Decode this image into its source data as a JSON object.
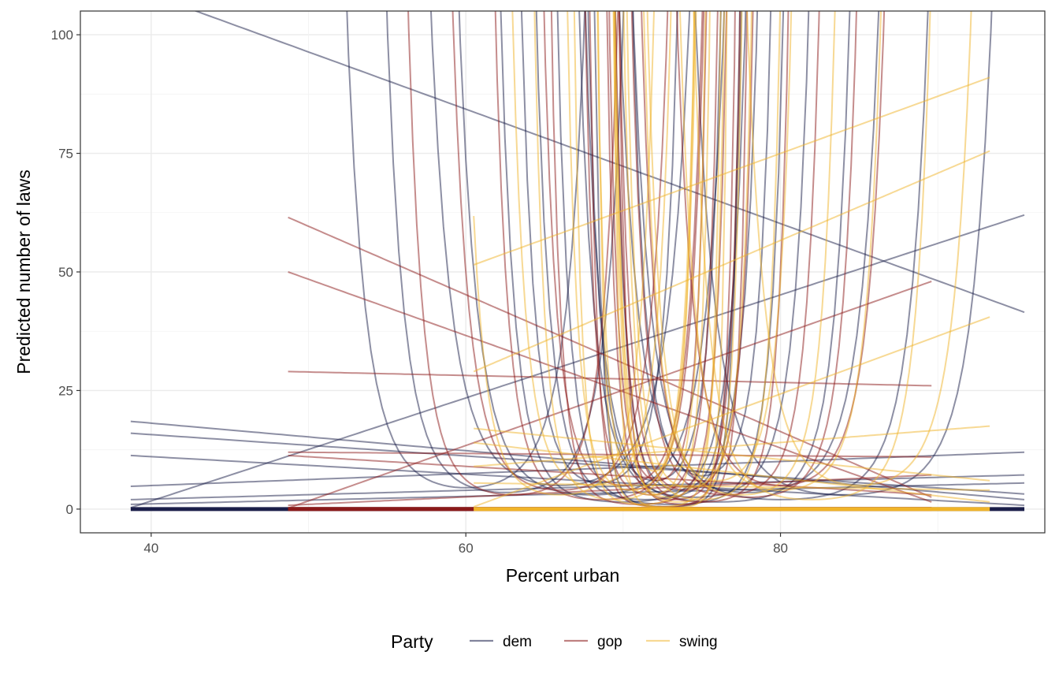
{
  "chart_data": {
    "type": "line",
    "title": "",
    "xlabel": "Percent urban",
    "ylabel": "Predicted number of laws",
    "xlim": [
      35.5,
      96.8
    ],
    "ylim": [
      -5,
      105
    ],
    "x_ticks": [
      40,
      60,
      80
    ],
    "y_ticks": [
      0,
      25,
      50,
      75,
      100
    ],
    "grid": true,
    "legend": {
      "title": "Party",
      "position": "bottom",
      "entries": [
        {
          "label": "dem",
          "color": "#1b1f4a"
        },
        {
          "label": "gop",
          "color": "#8b1a1a"
        },
        {
          "label": "swing",
          "color": "#f0b429"
        }
      ]
    },
    "series_groups": [
      {
        "name": "dem",
        "color": "#1b1f4a",
        "x_range": [
          38.7,
          95.5
        ],
        "curves": [
          {
            "form": "line",
            "y0": 18.5,
            "y1": 2.0
          },
          {
            "form": "line",
            "y0": 16.0,
            "y1": 3.2
          },
          {
            "form": "line",
            "y0": 4.8,
            "y1": 12.0
          },
          {
            "form": "line",
            "y0": 2.0,
            "y1": 7.2
          },
          {
            "form": "line",
            "y0": 1.0,
            "y1": 5.5
          },
          {
            "form": "line",
            "y0": 11.3,
            "y1": 0.8
          },
          {
            "form": "line",
            "y0": 110,
            "y1": 41.5
          },
          {
            "form": "line",
            "y0": 0.3,
            "y1": 62.0
          },
          {
            "form": "line",
            "y0": 0.2,
            "y1": 0.2
          },
          {
            "form": "u",
            "center": 60.0,
            "min": 4.5,
            "k": 0.055
          },
          {
            "form": "u",
            "center": 62.5,
            "min": 3.5,
            "k": 0.06
          },
          {
            "form": "u",
            "center": 66.0,
            "min": 5.0,
            "k": 0.045
          },
          {
            "form": "u",
            "center": 68.0,
            "min": 3.0,
            "k": 0.05
          },
          {
            "form": "u",
            "center": 70.0,
            "min": 1.5,
            "k": 0.07
          },
          {
            "form": "u",
            "center": 71.5,
            "min": 2.0,
            "k": 0.08
          },
          {
            "form": "u",
            "center": 73.0,
            "min": 1.0,
            "k": 0.09
          },
          {
            "form": "u",
            "center": 74.5,
            "min": 2.5,
            "k": 0.07
          },
          {
            "form": "u",
            "center": 76.0,
            "min": 1.5,
            "k": 0.06
          },
          {
            "form": "u",
            "center": 78.0,
            "min": 3.5,
            "k": 0.05
          },
          {
            "form": "u",
            "center": 80.0,
            "min": 2.0,
            "k": 0.045
          },
          {
            "form": "u",
            "center": 84.0,
            "min": 3.0,
            "k": 0.04
          },
          {
            "form": "u",
            "center": 72.0,
            "min": 6.0,
            "k": 0.16
          },
          {
            "form": "u",
            "center": 73.5,
            "min": 4.0,
            "k": 0.2
          },
          {
            "form": "u",
            "center": 72.8,
            "min": 0.5,
            "k": 0.25
          },
          {
            "form": "u",
            "center": 75.0,
            "min": 7.0,
            "k": 0.14
          },
          {
            "form": "u",
            "center": 68.5,
            "min": 5.5,
            "k": 0.12
          }
        ]
      },
      {
        "name": "gop",
        "color": "#8b1a1a",
        "x_range": [
          48.7,
          89.6
        ],
        "curves": [
          {
            "form": "line",
            "y0": 50.0,
            "y1": 1.5
          },
          {
            "form": "line",
            "y0": 29.0,
            "y1": 26.0
          },
          {
            "form": "line",
            "y0": 12.0,
            "y1": 11.0
          },
          {
            "form": "line",
            "y0": 11.3,
            "y1": 3.0
          },
          {
            "form": "line",
            "y0": 0.8,
            "y1": 7.2
          },
          {
            "form": "line",
            "y0": 61.5,
            "y1": 2.5
          },
          {
            "form": "line",
            "y0": 0.2,
            "y1": 48.0
          },
          {
            "form": "line",
            "y0": 0.3,
            "y1": 0.3
          },
          {
            "form": "u",
            "center": 63.0,
            "min": 3.0,
            "k": 0.08
          },
          {
            "form": "u",
            "center": 66.0,
            "min": 4.0,
            "k": 0.07
          },
          {
            "form": "u",
            "center": 68.5,
            "min": 2.0,
            "k": 0.09
          },
          {
            "form": "u",
            "center": 70.0,
            "min": 5.0,
            "k": 0.12
          },
          {
            "form": "u",
            "center": 71.0,
            "min": 1.0,
            "k": 0.15
          },
          {
            "form": "u",
            "center": 71.8,
            "min": 3.0,
            "k": 0.2
          },
          {
            "form": "u",
            "center": 72.5,
            "min": 0.5,
            "k": 0.25
          },
          {
            "form": "u",
            "center": 73.2,
            "min": 2.0,
            "k": 0.22
          },
          {
            "form": "u",
            "center": 74.0,
            "min": 4.0,
            "k": 0.18
          },
          {
            "form": "u",
            "center": 75.0,
            "min": 1.5,
            "k": 0.14
          },
          {
            "form": "u",
            "center": 76.5,
            "min": 3.0,
            "k": 0.1
          },
          {
            "form": "u",
            "center": 78.0,
            "min": 2.5,
            "k": 0.08
          },
          {
            "form": "u",
            "center": 80.0,
            "min": 5.0,
            "k": 0.07
          },
          {
            "form": "u",
            "center": 72.2,
            "min": 6.0,
            "k": 0.3
          },
          {
            "form": "u",
            "center": 73.8,
            "min": 1.0,
            "k": 0.28
          }
        ]
      },
      {
        "name": "swing",
        "color": "#f0b429",
        "x_range": [
          60.5,
          93.3
        ],
        "curves": [
          {
            "form": "line",
            "y0": 51.5,
            "y1": 91.0
          },
          {
            "form": "line",
            "y0": 29.0,
            "y1": 75.5
          },
          {
            "form": "line",
            "y0": 17.0,
            "y1": 6.0
          },
          {
            "form": "line",
            "y0": 14.0,
            "y1": 1.5
          },
          {
            "form": "line",
            "y0": 9.0,
            "y1": 17.5
          },
          {
            "form": "line",
            "y0": 5.5,
            "y1": 4.0
          },
          {
            "form": "line",
            "y0": 0.5,
            "y1": 40.5
          },
          {
            "form": "line",
            "y0": 0.2,
            "y1": 0.2
          },
          {
            "form": "u",
            "center": 66.0,
            "min": 3.0,
            "k": 0.1
          },
          {
            "form": "u",
            "center": 68.0,
            "min": 5.0,
            "k": 0.12
          },
          {
            "form": "u",
            "center": 69.5,
            "min": 2.0,
            "k": 0.15
          },
          {
            "form": "u",
            "center": 70.5,
            "min": 4.0,
            "k": 0.2
          },
          {
            "form": "u",
            "center": 71.2,
            "min": 1.0,
            "k": 0.25
          },
          {
            "form": "u",
            "center": 71.8,
            "min": 3.0,
            "k": 0.3
          },
          {
            "form": "u",
            "center": 72.3,
            "min": 0.5,
            "k": 0.35
          },
          {
            "form": "u",
            "center": 72.9,
            "min": 2.5,
            "k": 0.3
          },
          {
            "form": "u",
            "center": 73.5,
            "min": 1.5,
            "k": 0.26
          },
          {
            "form": "u",
            "center": 74.2,
            "min": 4.5,
            "k": 0.2
          },
          {
            "form": "u",
            "center": 75.0,
            "min": 2.0,
            "k": 0.16
          },
          {
            "form": "u",
            "center": 76.0,
            "min": 6.0,
            "k": 0.13
          },
          {
            "form": "u",
            "center": 77.5,
            "min": 3.0,
            "k": 0.1
          },
          {
            "form": "u",
            "center": 80.0,
            "min": 4.0,
            "k": 0.08
          },
          {
            "form": "u",
            "center": 82.0,
            "min": 2.0,
            "k": 0.07
          },
          {
            "form": "u",
            "center": 85.0,
            "min": 5.0,
            "k": 0.06
          },
          {
            "form": "u",
            "center": 72.0,
            "min": 8.0,
            "k": 0.4
          },
          {
            "form": "u",
            "center": 73.0,
            "min": 0.3,
            "k": 0.45
          }
        ]
      }
    ]
  }
}
